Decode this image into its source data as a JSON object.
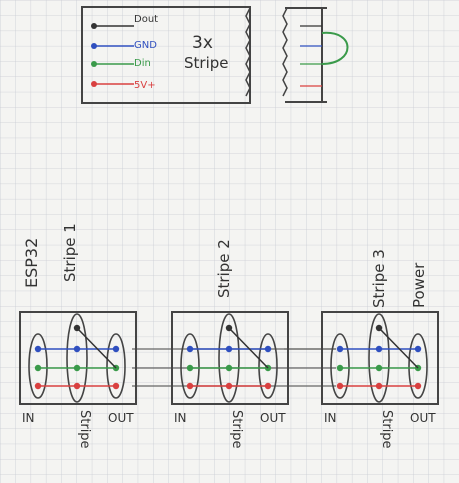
{
  "legend": {
    "title": "3x",
    "subtitle": "Stripe",
    "pins": [
      {
        "label": "Dout",
        "color": "#333333"
      },
      {
        "label": "GND",
        "color": "#2f4fbf"
      },
      {
        "label": "Din",
        "color": "#3a9a4a"
      },
      {
        "label": "5V+",
        "color": "#d94040"
      }
    ]
  },
  "labels": {
    "esp": "ESP32",
    "stripe1": "Stripe 1",
    "stripe2": "Stripe 2",
    "stripe3": "Stripe 3",
    "power": "Power"
  },
  "boards": [
    {
      "in": "IN",
      "stripe": "Stripe",
      "out": "OUT"
    },
    {
      "in": "IN",
      "stripe": "Stripe",
      "out": "OUT"
    },
    {
      "in": "IN",
      "stripe": "Stripe",
      "out": "OUT"
    }
  ],
  "colors": {
    "gnd": "#2f4fbf",
    "din": "#3a9a4a",
    "power": "#d94040",
    "dout": "#333333",
    "ink": "#444444",
    "grid": "#c9ccd3"
  }
}
